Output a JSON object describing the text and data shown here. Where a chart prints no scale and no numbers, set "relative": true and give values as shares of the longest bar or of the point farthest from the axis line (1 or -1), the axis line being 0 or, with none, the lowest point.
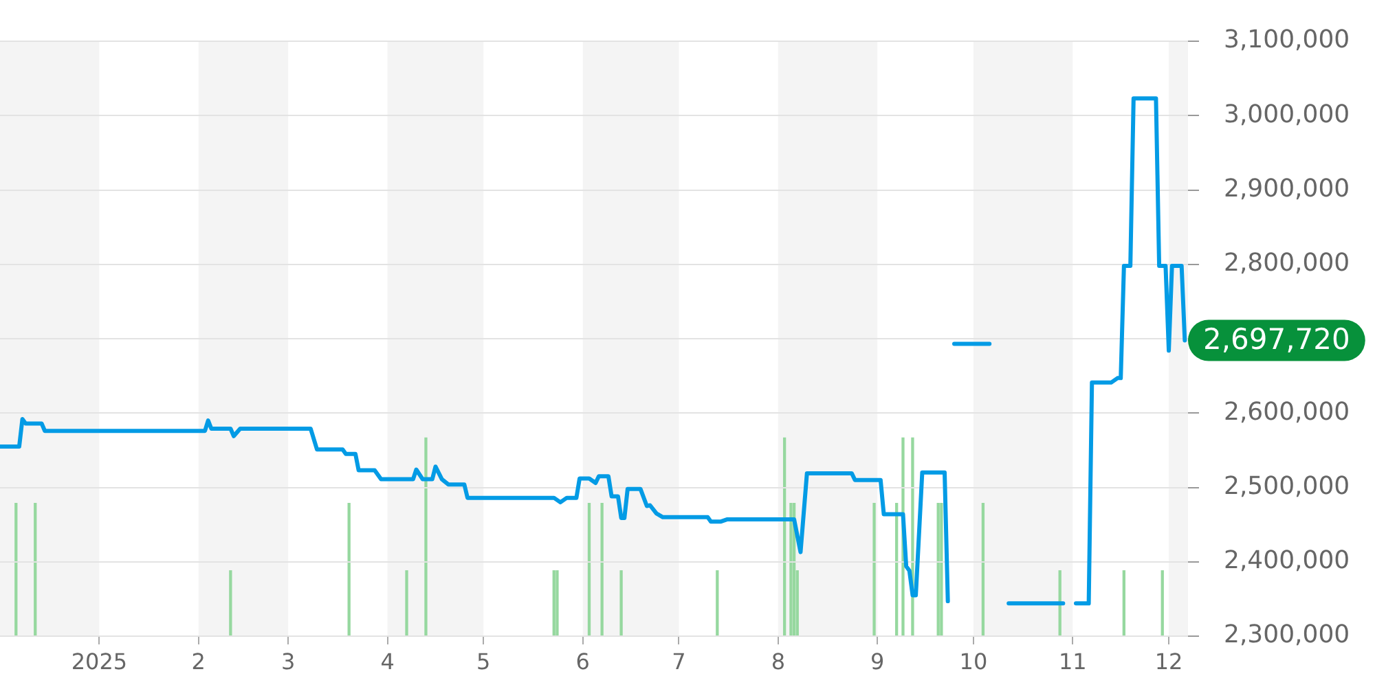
{
  "chart_data": [
    {
      "type": "line",
      "color": "#039be5",
      "xlim": [
        "2024-12-01",
        "2025-12-07"
      ],
      "xticks": [
        {
          "value": "2025-01-01",
          "label": "2025"
        },
        {
          "value": "2025-02-01",
          "label": "2"
        },
        {
          "value": "2025-03-01",
          "label": "3"
        },
        {
          "value": "2025-04-01",
          "label": "4"
        },
        {
          "value": "2025-05-01",
          "label": "5"
        },
        {
          "value": "2025-06-01",
          "label": "6"
        },
        {
          "value": "2025-07-01",
          "label": "7"
        },
        {
          "value": "2025-08-01",
          "label": "8"
        },
        {
          "value": "2025-09-01",
          "label": "9"
        },
        {
          "value": "2025-10-01",
          "label": "10"
        },
        {
          "value": "2025-11-01",
          "label": "11"
        },
        {
          "value": "2025-12-01",
          "label": "12"
        }
      ],
      "ylim": [
        2300000,
        3100000
      ],
      "yticks": [
        {
          "value": 2300000,
          "label": "2,300,000"
        },
        {
          "value": 2400000,
          "label": "2,400,000"
        },
        {
          "value": 2500000,
          "label": "2,500,000"
        },
        {
          "value": 2600000,
          "label": "2,600,000"
        },
        {
          "value": 2700000,
          "label": null
        },
        {
          "value": 2800000,
          "label": "2,800,000"
        },
        {
          "value": 2900000,
          "label": "2,900,000"
        },
        {
          "value": 3000000,
          "label": "3,000,000"
        },
        {
          "value": 3100000,
          "label": "3,100,000"
        }
      ],
      "grid": "y",
      "legend": false,
      "annotations": [
        {
          "text": "2,697,720",
          "x": "2025-12-06",
          "y": 2697720
        }
      ],
      "x": [
        "2024-12-01",
        "2024-12-07",
        "2024-12-08",
        "2024-12-09",
        "2024-12-14",
        "2024-12-15",
        "2025-02-03",
        "2025-02-04",
        "2025-02-05",
        "2025-02-11",
        "2025-02-12",
        "2025-02-14",
        "2025-03-08",
        "2025-03-10",
        "2025-03-18",
        "2025-03-19",
        "2025-03-22",
        "2025-03-23",
        "2025-03-28",
        "2025-03-30",
        "2025-04-09",
        "2025-04-10",
        "2025-04-12",
        "2025-04-15",
        "2025-04-16",
        "2025-04-18",
        "2025-04-20",
        "2025-04-25",
        "2025-04-26",
        "2025-05-23",
        "2025-05-25",
        "2025-05-27",
        "2025-05-30",
        "2025-05-31",
        "2025-06-03",
        "2025-06-05",
        "2025-06-06",
        "2025-06-09",
        "2025-06-10",
        "2025-06-12",
        "2025-06-13",
        "2025-06-14",
        "2025-06-15",
        "2025-06-19",
        "2025-06-21",
        "2025-06-22",
        "2025-06-24",
        "2025-06-26",
        "2025-07-10",
        "2025-07-11",
        "2025-07-14",
        "2025-07-16",
        "2025-08-06",
        "2025-08-08",
        "2025-08-10",
        "2025-08-24",
        "2025-08-25",
        "2025-09-02",
        "2025-09-03",
        "2025-09-09",
        "2025-09-10",
        "2025-09-11",
        "2025-09-12",
        "2025-09-13",
        "2025-09-15",
        "2025-09-22",
        "2025-09-23",
        "2025-09-24",
        "2025-09-25",
        "2025-10-06",
        "2025-10-09",
        "2025-10-12",
        "2025-10-29",
        "2025-10-31",
        "2025-11-02",
        "2025-11-06",
        "2025-11-07",
        "2025-11-13",
        "2025-11-15",
        "2025-11-16",
        "2025-11-17",
        "2025-11-19",
        "2025-11-20",
        "2025-11-27",
        "2025-11-28",
        "2025-11-30",
        "2025-12-01",
        "2025-12-02",
        "2025-12-05",
        "2025-12-06"
      ],
      "values": [
        2555000,
        2555000,
        2592000,
        2586000,
        2586000,
        2576000,
        2576000,
        2590000,
        2579000,
        2579000,
        2569000,
        2579000,
        2579000,
        2551000,
        2551000,
        2545000,
        2545000,
        2523000,
        2523000,
        2511000,
        2511000,
        2524000,
        2511000,
        2511000,
        2528000,
        2511000,
        2504000,
        2504000,
        2486000,
        2486000,
        2480000,
        2486000,
        2486000,
        2512000,
        2512000,
        2506000,
        2515000,
        2515000,
        2488000,
        2488000,
        2459000,
        2459000,
        2498000,
        2498000,
        2475000,
        2476000,
        2465000,
        2460000,
        2460000,
        2454000,
        2454000,
        2457000,
        2457000,
        2413000,
        2519000,
        2519000,
        2510000,
        2510000,
        2464000,
        2464000,
        2394000,
        2388000,
        2355000,
        2355000,
        2520000,
        2520000,
        2347000,
        null,
        2693000,
        2693000,
        null,
        2344000,
        2344000,
        null,
        2344000,
        2344000,
        2641000,
        2641000,
        2647000,
        2647000,
        2798000,
        2798000,
        3023000,
        3023000,
        2798000,
        2798000,
        2684000,
        2798000,
        2798000,
        2697720
      ]
    },
    {
      "type": "bar",
      "relative": true,
      "color": "#96d89f",
      "xlim": [
        "2024-12-01",
        "2025-12-07"
      ],
      "bands": [
        {
          "axis": "x",
          "from": "2024-12-01",
          "to": "2025-01-01",
          "color": "#f4f4f4"
        },
        {
          "axis": "x",
          "from": "2025-02-01",
          "to": "2025-03-01",
          "color": "#f4f4f4"
        },
        {
          "axis": "x",
          "from": "2025-04-01",
          "to": "2025-05-01",
          "color": "#f4f4f4"
        },
        {
          "axis": "x",
          "from": "2025-06-01",
          "to": "2025-07-01",
          "color": "#f4f4f4"
        },
        {
          "axis": "x",
          "from": "2025-08-01",
          "to": "2025-09-01",
          "color": "#f4f4f4"
        },
        {
          "axis": "x",
          "from": "2025-10-01",
          "to": "2025-11-01",
          "color": "#f4f4f4"
        },
        {
          "axis": "x",
          "from": "2025-12-01",
          "to": "2025-12-07",
          "color": "#f4f4f4"
        }
      ],
      "x": [
        "2024-12-06",
        "2024-12-12",
        "2025-02-11",
        "2025-03-20",
        "2025-04-07",
        "2025-04-13",
        "2025-05-23",
        "2025-05-24",
        "2025-06-03",
        "2025-06-07",
        "2025-06-13",
        "2025-07-13",
        "2025-08-03",
        "2025-08-05",
        "2025-08-06",
        "2025-08-07",
        "2025-08-31",
        "2025-09-07",
        "2025-09-09",
        "2025-09-12",
        "2025-09-20",
        "2025-09-21",
        "2025-10-04",
        "2025-10-28",
        "2025-11-17",
        "2025-11-29"
      ],
      "values": [
        0.67,
        0.67,
        0.33,
        0.67,
        0.33,
        1,
        0.33,
        0.33,
        0.67,
        0.67,
        0.33,
        0.33,
        1,
        0.67,
        0.67,
        0.33,
        0.67,
        0.67,
        1,
        1,
        0.67,
        0.67,
        0.67,
        0.33,
        0.33,
        0.33
      ]
    }
  ]
}
